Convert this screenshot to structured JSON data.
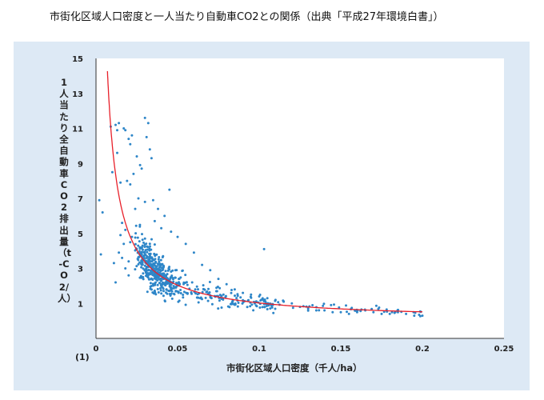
{
  "chart_data": {
    "type": "scatter",
    "title": "市街化区域人口密度と一人当たり自動車CO2との関係（出典「平成27年環境白書」）",
    "xlabel": "市街化区域人口密度（千人/ha）",
    "ylabel": "1人当たり全自動車CO2排出量（t-CO2/人）",
    "ylabel_unit": "(1)",
    "xlim": [
      0,
      0.25
    ],
    "ylim": [
      -1,
      15
    ],
    "x_ticks": [
      "0",
      "0.05",
      "0.1",
      "0.15",
      "0.2",
      "0.25"
    ],
    "y_ticks": [
      "1",
      "3",
      "5",
      "7",
      "9",
      "11",
      "13",
      "15"
    ],
    "x_tick_values": [
      0,
      0.05,
      0.1,
      0.15,
      0.2,
      0.25
    ],
    "y_tick_values": [
      1,
      3,
      5,
      7,
      9,
      11,
      13,
      15
    ],
    "grid": false,
    "point_color": "#2e86c8",
    "fit_color": "#e8202a",
    "trendline": {
      "type": "power",
      "coefficient": 0.105,
      "exponent": -0.99,
      "x_range": [
        0.007,
        0.2
      ]
    },
    "point_count": 700,
    "points": [
      [
        0.002,
        6.9
      ],
      [
        0.003,
        3.8
      ],
      [
        0.004,
        6.2
      ],
      [
        0.009,
        11.1
      ],
      [
        0.01,
        8.5
      ],
      [
        0.012,
        11.2
      ],
      [
        0.013,
        10.9
      ],
      [
        0.014,
        11.3
      ],
      [
        0.017,
        11.0
      ],
      [
        0.018,
        10.9
      ],
      [
        0.02,
        10.4
      ],
      [
        0.021,
        10.1
      ],
      [
        0.022,
        10.6
      ],
      [
        0.019,
        8.0
      ],
      [
        0.021,
        7.8
      ],
      [
        0.023,
        8.4
      ],
      [
        0.025,
        9.4
      ],
      [
        0.027,
        8.9
      ],
      [
        0.028,
        8.7
      ],
      [
        0.03,
        11.6
      ],
      [
        0.031,
        10.5
      ],
      [
        0.032,
        11.3
      ],
      [
        0.033,
        9.8
      ],
      [
        0.034,
        9.3
      ],
      [
        0.013,
        9.6
      ],
      [
        0.015,
        7.9
      ],
      [
        0.045,
        7.5
      ],
      [
        0.022,
        4.8
      ],
      [
        0.025,
        4.1
      ],
      [
        0.103,
        4.1
      ],
      [
        0.016,
        5.6
      ],
      [
        0.018,
        5.2
      ],
      [
        0.017,
        4.4
      ],
      [
        0.012,
        2.2
      ],
      [
        0.011,
        3.3
      ],
      [
        0.02,
        2.6
      ],
      [
        0.014,
        3.9
      ],
      [
        0.015,
        4.9
      ],
      [
        0.016,
        3.6
      ],
      [
        0.018,
        3.0
      ],
      [
        0.02,
        3.4
      ],
      [
        0.021,
        4.5
      ],
      [
        0.024,
        6.4
      ],
      [
        0.026,
        7.0
      ],
      [
        0.03,
        6.8
      ],
      [
        0.035,
        6.9
      ],
      [
        0.038,
        6.4
      ],
      [
        0.036,
        5.7
      ],
      [
        0.04,
        5.3
      ],
      [
        0.042,
        6.0
      ],
      [
        0.046,
        5.1
      ],
      [
        0.05,
        4.8
      ],
      [
        0.055,
        4.4
      ],
      [
        0.06,
        3.9
      ],
      [
        0.065,
        3.2
      ],
      [
        0.07,
        2.9
      ],
      [
        0.075,
        2.4
      ],
      [
        0.08,
        2.1
      ],
      [
        0.085,
        1.8
      ],
      [
        0.09,
        1.6
      ],
      [
        0.095,
        1.5
      ],
      [
        0.1,
        1.4
      ],
      [
        0.105,
        1.3
      ],
      [
        0.11,
        1.2
      ],
      [
        0.115,
        1.1
      ],
      [
        0.12,
        1.0
      ],
      [
        0.125,
        0.8
      ],
      [
        0.13,
        0.7
      ],
      [
        0.135,
        0.6
      ],
      [
        0.14,
        0.6
      ],
      [
        0.145,
        0.5
      ],
      [
        0.15,
        0.5
      ],
      [
        0.155,
        0.4
      ],
      [
        0.16,
        0.5
      ],
      [
        0.165,
        0.6
      ],
      [
        0.17,
        0.5
      ],
      [
        0.175,
        0.4
      ],
      [
        0.18,
        0.4
      ],
      [
        0.185,
        0.5
      ],
      [
        0.19,
        0.4
      ],
      [
        0.195,
        0.3
      ],
      [
        0.198,
        0.35
      ],
      [
        0.2,
        0.3
      ]
    ]
  }
}
